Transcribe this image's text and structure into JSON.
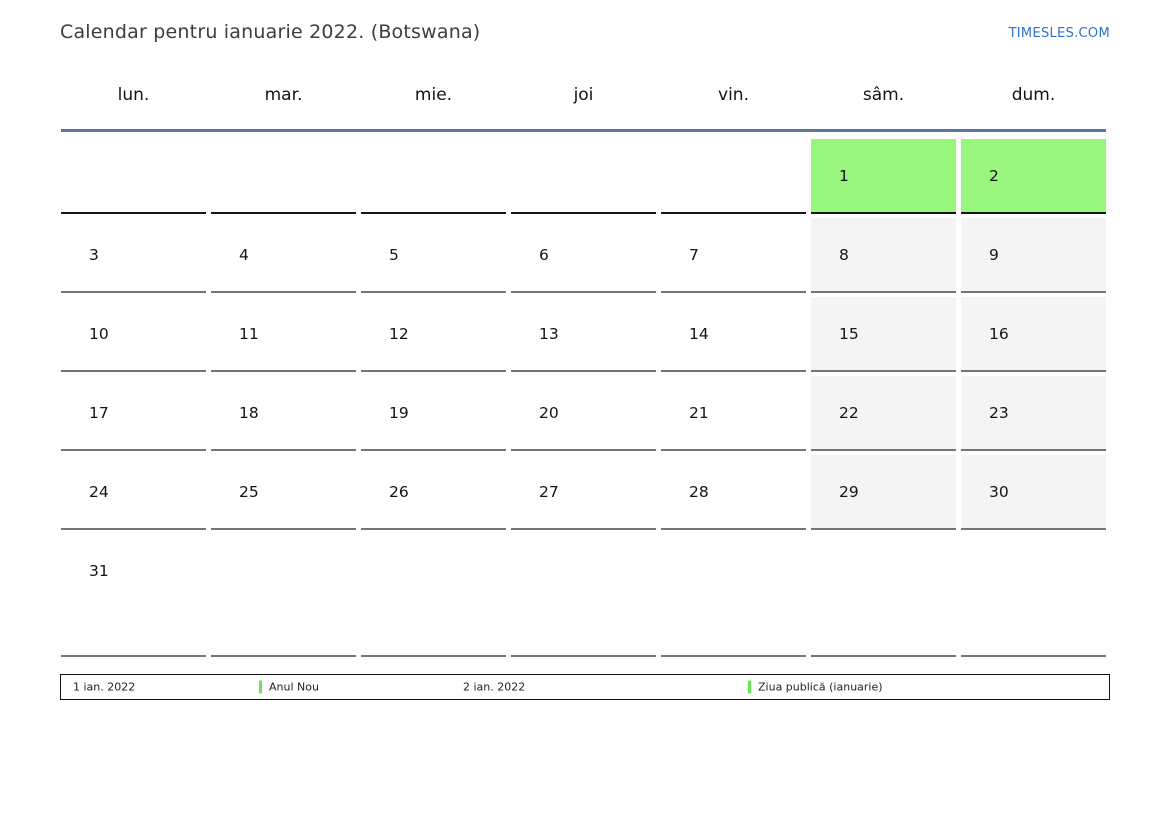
{
  "header": {
    "title": "Calendar pentru ianuarie 2022. (Botswana)",
    "site_link": "TIMESLES.COM"
  },
  "calendar": {
    "weekday_headers": [
      "lun.",
      "mar.",
      "mie.",
      "joi",
      "vin.",
      "sâm.",
      "dum."
    ],
    "weeks": [
      [
        "",
        "",
        "",
        "",
        "",
        "1",
        "2"
      ],
      [
        "3",
        "4",
        "5",
        "6",
        "7",
        "8",
        "9"
      ],
      [
        "10",
        "11",
        "12",
        "13",
        "14",
        "15",
        "16"
      ],
      [
        "17",
        "18",
        "19",
        "20",
        "21",
        "22",
        "23"
      ],
      [
        "24",
        "25",
        "26",
        "27",
        "28",
        "29",
        "30"
      ],
      [
        "31",
        "",
        "",
        "",
        "",
        "",
        ""
      ]
    ],
    "holiday_days": [
      "1",
      "2"
    ]
  },
  "legend": {
    "entries": [
      {
        "date": "1 ian. 2022",
        "label": "Anul Nou"
      },
      {
        "date": "2 ian. 2022",
        "label": "Ziua publică (ianuarie)"
      }
    ]
  },
  "colors": {
    "holiday_green": "#98f67e",
    "legend_marker_green": "#68e457",
    "weekend_gray": "#f4f4f4",
    "header_rule_blue": "#56779e",
    "link_blue": "#2d74c7",
    "cell_border_gray": "#757575",
    "cell_border_dark": "#161616"
  }
}
